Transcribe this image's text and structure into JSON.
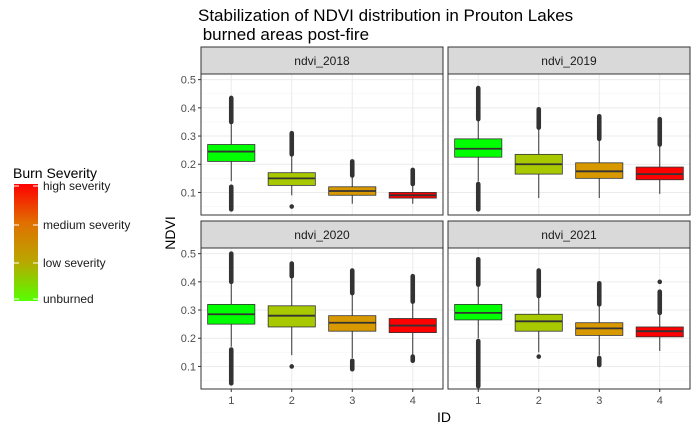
{
  "title_line1": "Stabilization of NDVI distribution in Prouton Lakes",
  "title_line2": " burned areas post-fire",
  "chart_data": {
    "type": "boxplot",
    "xlabel": "ID",
    "ylabel": "NDVI",
    "ylim": [
      0.02,
      0.52
    ],
    "yticks": [
      0.1,
      0.2,
      0.3,
      0.4,
      0.5
    ],
    "categories": [
      "1",
      "2",
      "3",
      "4"
    ],
    "grid": true,
    "facet_layout": "2x2",
    "panels": [
      {
        "name": "ndvi_2018",
        "boxes": [
          {
            "id": "1",
            "lower_whisker": 0.14,
            "q1": 0.21,
            "median": 0.245,
            "q3": 0.27,
            "upper_whisker": 0.35,
            "outliers_high": [
              0.35,
              0.435
            ],
            "outliers_low": [
              0.04,
              0.12
            ],
            "fill": "#00FF00"
          },
          {
            "id": "2",
            "lower_whisker": 0.09,
            "q1": 0.125,
            "median": 0.15,
            "q3": 0.17,
            "upper_whisker": 0.235,
            "outliers_high": [
              0.235,
              0.31
            ],
            "outliers_low": [
              0.05,
              0.05
            ],
            "fill": "#A8C800"
          },
          {
            "id": "3",
            "lower_whisker": 0.06,
            "q1": 0.09,
            "median": 0.105,
            "q3": 0.12,
            "upper_whisker": 0.16,
            "outliers_high": [
              0.16,
              0.21
            ],
            "outliers_low": null,
            "fill": "#D89800"
          },
          {
            "id": "4",
            "lower_whisker": 0.06,
            "q1": 0.08,
            "median": 0.09,
            "q3": 0.1,
            "upper_whisker": 0.13,
            "outliers_high": [
              0.13,
              0.18
            ],
            "outliers_low": null,
            "fill": "#FF0000"
          }
        ]
      },
      {
        "name": "ndvi_2019",
        "boxes": [
          {
            "id": "1",
            "lower_whisker": 0.14,
            "q1": 0.225,
            "median": 0.255,
            "q3": 0.29,
            "upper_whisker": 0.36,
            "outliers_high": [
              0.36,
              0.47
            ],
            "outliers_low": [
              0.04,
              0.13
            ],
            "fill": "#00FF00"
          },
          {
            "id": "2",
            "lower_whisker": 0.08,
            "q1": 0.165,
            "median": 0.2,
            "q3": 0.235,
            "upper_whisker": 0.33,
            "outliers_high": [
              0.33,
              0.395
            ],
            "outliers_low": null,
            "fill": "#A8C800"
          },
          {
            "id": "3",
            "lower_whisker": 0.08,
            "q1": 0.15,
            "median": 0.175,
            "q3": 0.205,
            "upper_whisker": 0.29,
            "outliers_high": [
              0.29,
              0.37
            ],
            "outliers_low": null,
            "fill": "#D89800"
          },
          {
            "id": "4",
            "lower_whisker": 0.095,
            "q1": 0.145,
            "median": 0.165,
            "q3": 0.19,
            "upper_whisker": 0.27,
            "outliers_high": [
              0.27,
              0.36
            ],
            "outliers_low": null,
            "fill": "#FF0000"
          }
        ]
      },
      {
        "name": "ndvi_2020",
        "boxes": [
          {
            "id": "1",
            "lower_whisker": 0.17,
            "q1": 0.25,
            "median": 0.285,
            "q3": 0.32,
            "upper_whisker": 0.4,
            "outliers_high": [
              0.4,
              0.5
            ],
            "outliers_low": [
              0.04,
              0.16
            ],
            "fill": "#00FF00"
          },
          {
            "id": "2",
            "lower_whisker": 0.14,
            "q1": 0.24,
            "median": 0.28,
            "q3": 0.315,
            "upper_whisker": 0.42,
            "outliers_high": [
              0.42,
              0.465
            ],
            "outliers_low": [
              0.1,
              0.1
            ],
            "fill": "#A8C800"
          },
          {
            "id": "3",
            "lower_whisker": 0.13,
            "q1": 0.225,
            "median": 0.255,
            "q3": 0.28,
            "upper_whisker": 0.36,
            "outliers_high": [
              0.36,
              0.44
            ],
            "outliers_low": [
              0.09,
              0.12
            ],
            "fill": "#D89800"
          },
          {
            "id": "4",
            "lower_whisker": 0.14,
            "q1": 0.22,
            "median": 0.245,
            "q3": 0.27,
            "upper_whisker": 0.33,
            "outliers_high": [
              0.33,
              0.42
            ],
            "outliers_low": [
              0.12,
              0.135
            ],
            "fill": "#FF0000"
          }
        ]
      },
      {
        "name": "ndvi_2021",
        "boxes": [
          {
            "id": "1",
            "lower_whisker": 0.2,
            "q1": 0.265,
            "median": 0.29,
            "q3": 0.32,
            "upper_whisker": 0.39,
            "outliers_high": [
              0.39,
              0.48
            ],
            "outliers_low": [
              0.03,
              0.19
            ],
            "fill": "#00FF00"
          },
          {
            "id": "2",
            "lower_whisker": 0.15,
            "q1": 0.225,
            "median": 0.26,
            "q3": 0.285,
            "upper_whisker": 0.35,
            "outliers_high": [
              0.35,
              0.44
            ],
            "outliers_low": [
              0.135,
              0.135
            ],
            "fill": "#A8C800"
          },
          {
            "id": "3",
            "lower_whisker": 0.14,
            "q1": 0.21,
            "median": 0.235,
            "q3": 0.255,
            "upper_whisker": 0.32,
            "outliers_high": [
              0.32,
              0.395
            ],
            "outliers_low": [
              0.105,
              0.13
            ],
            "fill": "#D89800"
          },
          {
            "id": "4",
            "lower_whisker": 0.155,
            "q1": 0.205,
            "median": 0.225,
            "q3": 0.24,
            "upper_whisker": 0.29,
            "outliers_high": [
              0.29,
              0.365
            ],
            "outliers_low": null,
            "fill": "#FF0000",
            "extra_outliers": [
              0.4
            ]
          }
        ]
      }
    ],
    "legend": {
      "title": "Burn Severity",
      "placement": "left",
      "labels": [
        "high severity",
        "medium severity",
        "low severity",
        "unburned"
      ],
      "gradient_colors": [
        "#FF0000",
        "#E07000",
        "#B8A800",
        "#55FF00"
      ]
    },
    "colors": {
      "strip_fill": "#D9D9D9",
      "grid_major": "#EBEBEB",
      "grid_minor": "#F5F5F5",
      "panel_border": "#333333",
      "outlier": "#333333"
    }
  }
}
